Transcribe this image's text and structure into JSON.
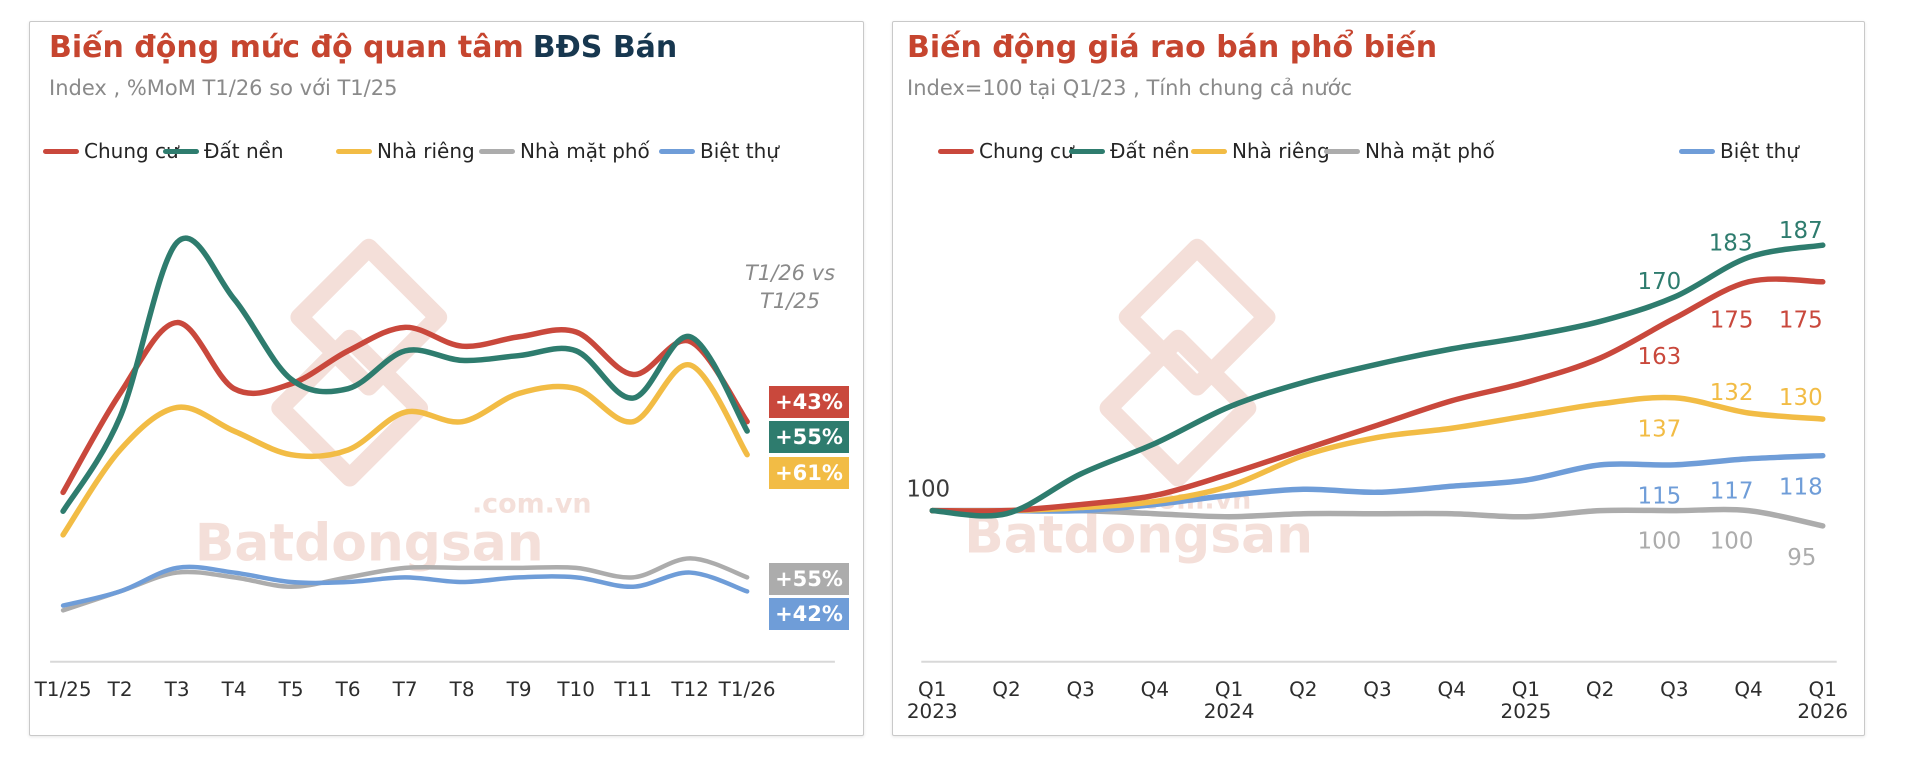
{
  "page": {
    "background": "#FFFFFF"
  },
  "watermark": {
    "brand": "Batdongsan",
    "domain": ".com.vn",
    "color": "#F4DFD9"
  },
  "palette": {
    "chung_cu": "#C9483C",
    "dat_nen": "#2E7C6E",
    "nha_rieng": "#F2BC45",
    "nha_mat_pho": "#ACACAC",
    "biet_thu": "#6F9DD8",
    "title_red": "#C6452F",
    "title_navy": "#17374F",
    "subtitle_gray": "#8A8A8A",
    "axis_text": "#2D2D2D",
    "axis_line": "#D8D8D8"
  },
  "left_chart": {
    "title": "Biến động mức độ quan tâm",
    "title_highlight": "BĐS Bán",
    "subtitle": "Index , %MoM T1/26 so với T1/25",
    "annotation": {
      "line1": "T1/26 vs",
      "line2": "T1/25"
    }
  },
  "right_chart": {
    "title": "Biến động giá rao bán phổ biến",
    "subtitle": "Index=100 tại Q1/23 , Tính chung cả nước",
    "baseline_label": "100"
  },
  "chart_data": [
    {
      "type": "line",
      "title": "Biến động mức độ quan tâm BĐS Bán",
      "subtitle": "Index , %MoM T1/26 so với T1/25",
      "x": [
        "T1/25",
        "T2",
        "T3",
        "T4",
        "T5",
        "T6",
        "T7",
        "T8",
        "T9",
        "T10",
        "T11",
        "T12",
        "T1/26"
      ],
      "y_note": "no y-axis shown; values estimated on a 0-100 relative scale of plot height",
      "legend_position": "top",
      "grid": false,
      "series": [
        {
          "name": "Chung cư",
          "color": "#C9483C",
          "change": "+43%",
          "values": [
            36,
            57,
            72,
            58,
            59,
            66,
            71,
            67,
            69,
            70,
            61,
            68,
            51
          ]
        },
        {
          "name": "Đất nền",
          "color": "#2E7C6E",
          "change": "+55%",
          "values": [
            32,
            52,
            89,
            77,
            60,
            58,
            66,
            64,
            65,
            66,
            56,
            69,
            49
          ]
        },
        {
          "name": "Nhà riêng",
          "color": "#F2BC45",
          "change": "+61%",
          "values": [
            27,
            45,
            54,
            49,
            44,
            45,
            53,
            51,
            57,
            58,
            51,
            63,
            44
          ]
        },
        {
          "name": "Nhà mặt phố",
          "color": "#ACACAC",
          "change": "+55%",
          "values": [
            11,
            15,
            19,
            18,
            16,
            18,
            20,
            20,
            20,
            20,
            18,
            22,
            18
          ]
        },
        {
          "name": "Biệt thự",
          "color": "#6F9DD8",
          "change": "+42%",
          "values": [
            12,
            15,
            20,
            19,
            17,
            17,
            18,
            17,
            18,
            18,
            16,
            19,
            15
          ]
        }
      ]
    },
    {
      "type": "line",
      "title": "Biến động giá rao bán phổ biến",
      "subtitle": "Index=100 tại Q1/23 , Tính chung cả nước",
      "x": [
        "Q1\n2023",
        "Q2",
        "Q3",
        "Q4",
        "Q1\n2024",
        "Q2",
        "Q3",
        "Q4",
        "Q1\n2025",
        "Q2",
        "Q3",
        "Q4",
        "Q1\n2026"
      ],
      "baseline": 100,
      "ylim": [
        85,
        200
      ],
      "legend_position": "top",
      "grid": false,
      "series": [
        {
          "name": "Chung cư",
          "color": "#C9483C",
          "values": [
            100,
            100,
            102,
            105,
            112,
            120,
            128,
            136,
            142,
            150,
            163,
            175,
            175
          ],
          "point_labels": {
            "10": "163",
            "11": "175",
            "12": "175"
          }
        },
        {
          "name": "Đất nền",
          "color": "#2E7C6E",
          "values": [
            100,
            99,
            112,
            122,
            134,
            142,
            148,
            153,
            157,
            162,
            170,
            183,
            187
          ],
          "point_labels": {
            "10": "170",
            "11": "183",
            "12": "187"
          }
        },
        {
          "name": "Nhà riêng",
          "color": "#F2BC45",
          "values": [
            100,
            100,
            101,
            103,
            108,
            118,
            124,
            127,
            131,
            135,
            137,
            132,
            130
          ],
          "point_labels": {
            "10": "137",
            "11": "132",
            "12": "130"
          }
        },
        {
          "name": "Nhà mặt phố",
          "color": "#ACACAC",
          "values": [
            100,
            100,
            100,
            99,
            98,
            99,
            99,
            99,
            98,
            100,
            100,
            100,
            95
          ],
          "point_labels": {
            "10": "100",
            "11": "100",
            "12": "95"
          }
        },
        {
          "name": "Biệt thự",
          "color": "#6F9DD8",
          "values": [
            100,
            100,
            100,
            102,
            105,
            107,
            106,
            108,
            110,
            115,
            115,
            117,
            118
          ],
          "point_labels": {
            "10": "115",
            "11": "117",
            "12": "118"
          }
        }
      ]
    }
  ]
}
